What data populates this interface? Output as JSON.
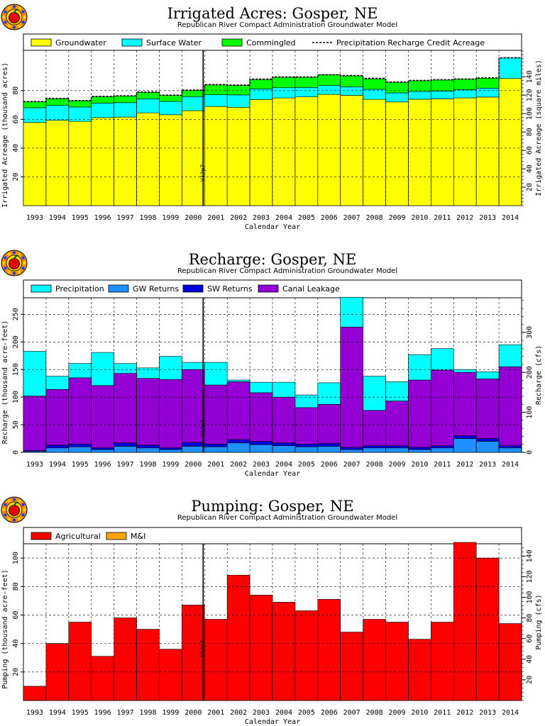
{
  "chart_data": [
    {
      "type": "bar",
      "stacked": true,
      "title": "Irrigated Acres: Gosper, NE",
      "subtitle": "Republican River Compact Administration Groundwater Model",
      "xlabel": "Calendar Year",
      "ylabel": "Irrigated Acreage (thousand acres)",
      "y2label": "Irrigated Acreage (square miles)",
      "categories": [
        "1993",
        "1994",
        "1995",
        "1996",
        "1997",
        "1998",
        "1999",
        "2000",
        "2001",
        "2002",
        "2003",
        "2004",
        "2005",
        "2006",
        "2007",
        "2008",
        "2009",
        "2010",
        "2011",
        "2012",
        "2013",
        "2014"
      ],
      "ylim": [
        0,
        108
      ],
      "yticks": [
        20.0,
        40.0,
        60.0,
        80.0
      ],
      "y2lim": [
        0,
        168.75
      ],
      "y2ticks": [
        20.0,
        40.0,
        60.0,
        80.0,
        100,
        120,
        140
      ],
      "grid": true,
      "legend_position": "top",
      "marker": {
        "label": "V12p7",
        "x": "2000/2001"
      },
      "series": [
        {
          "name": "Groundwater",
          "color": "#ffff00",
          "values": [
            57.8,
            59.3,
            58.6,
            61.2,
            61.6,
            64.5,
            63.2,
            66.0,
            69.0,
            68.4,
            73.8,
            74.9,
            75.6,
            77.4,
            76.7,
            73.9,
            72.1,
            74.0,
            74.2,
            74.9,
            75.5,
            88.4
          ]
        },
        {
          "name": "Surface Water",
          "color": "#00ffff",
          "values": [
            10.3,
            10.4,
            10.0,
            10.1,
            10.0,
            9.8,
            9.3,
            9.8,
            8.1,
            8.6,
            7.4,
            7.1,
            6.6,
            6.1,
            5.9,
            7.0,
            6.3,
            5.3,
            5.5,
            5.7,
            6.2,
            14.2
          ]
        },
        {
          "name": "Commingled",
          "color": "#00ff00",
          "values": [
            4.0,
            4.6,
            4.2,
            4.4,
            4.5,
            4.4,
            4.1,
            4.3,
            6.8,
            6.5,
            6.4,
            7.2,
            7.0,
            7.5,
            7.6,
            7.2,
            7.4,
            7.5,
            7.6,
            7.2,
            6.9,
            0.0
          ]
        }
      ],
      "line_series": {
        "name": "Precipitation Recharge Credit Acreage",
        "values": [
          72.4,
          74.6,
          73.1,
          76.0,
          76.4,
          79.1,
          76.9,
          80.4,
          84.2,
          83.9,
          88.0,
          89.5,
          89.5,
          91.0,
          90.5,
          88.5,
          86.0,
          87.1,
          87.6,
          88.1,
          88.9,
          102.8
        ]
      }
    },
    {
      "type": "bar",
      "stacked": true,
      "title": "Recharge: Gosper, NE",
      "subtitle": "Republican River Compact Administration Groundwater Model",
      "xlabel": "Calendar Year",
      "ylabel": "Recharge (thousand acre-feet)",
      "y2label": "Recharge (cfs)",
      "categories": [
        "1993",
        "1994",
        "1995",
        "1996",
        "1997",
        "1998",
        "1999",
        "2000",
        "2001",
        "2002",
        "2003",
        "2004",
        "2005",
        "2006",
        "2007",
        "2008",
        "2009",
        "2010",
        "2011",
        "2012",
        "2013",
        "2014"
      ],
      "ylim": [
        0,
        280
      ],
      "yticks": [
        0,
        50,
        100,
        150,
        200,
        250
      ],
      "y2lim": [
        0,
        386.7
      ],
      "y2ticks": [
        0,
        100,
        200,
        300
      ],
      "grid": true,
      "legend_position": "top",
      "marker": {
        "label": "V12p7",
        "x": "2000/2001"
      },
      "series": [
        {
          "name": "GW Returns",
          "color": "#1e90ff",
          "values": [
            2,
            8,
            10,
            5,
            11,
            8,
            5,
            11,
            10,
            17,
            14,
            12,
            10,
            11,
            5,
            8,
            8,
            5,
            8,
            25,
            20,
            8
          ]
        },
        {
          "name": "SW Returns",
          "color": "#0000dd",
          "values": [
            1,
            5,
            5,
            3,
            6,
            5,
            3,
            7,
            5,
            6,
            6,
            5,
            5,
            5,
            4,
            4,
            4,
            4,
            4,
            5,
            5,
            4
          ]
        },
        {
          "name": "Canal Leakage",
          "color": "#9400d3",
          "values": [
            99,
            101,
            120,
            113,
            126,
            121,
            124,
            132,
            107,
            105,
            88,
            83,
            66,
            71,
            218,
            64,
            81,
            122,
            137,
            115,
            108,
            143
          ]
        },
        {
          "name": "Precipitation",
          "color": "#00ffff",
          "values": [
            81,
            24,
            26,
            60,
            18,
            19,
            42,
            13,
            41,
            3,
            19,
            27,
            23,
            39,
            54,
            62,
            35,
            46,
            39,
            5,
            13,
            40
          ]
        }
      ]
    },
    {
      "type": "bar",
      "stacked": true,
      "title": "Pumping: Gosper, NE",
      "subtitle": "Republican River Compact Administration Groundwater Model",
      "xlabel": "Calendar Year",
      "ylabel": "Pumping (thousand acre-feet)",
      "y2label": "Pumping (cfs)",
      "categories": [
        "1993",
        "1994",
        "1995",
        "1996",
        "1997",
        "1998",
        "1999",
        "2000",
        "2001",
        "2002",
        "2003",
        "2004",
        "2005",
        "2006",
        "2007",
        "2008",
        "2009",
        "2010",
        "2011",
        "2012",
        "2013",
        "2014"
      ],
      "ylim": [
        0,
        110
      ],
      "yticks": [
        20.0,
        40.0,
        60.0,
        80.0,
        100
      ],
      "y2lim": [
        0,
        151.9
      ],
      "y2ticks": [
        20.0,
        40.0,
        60.0,
        80.0,
        100,
        120,
        140
      ],
      "grid": true,
      "legend_position": "top",
      "marker": {
        "label": "V12p7",
        "x": "2000/2001"
      },
      "series": [
        {
          "name": "Agricultural",
          "color": "#ff0000",
          "values": [
            10,
            40,
            55,
            31,
            58,
            50,
            36,
            67,
            57,
            88,
            74,
            69,
            63,
            71,
            48,
            57,
            55,
            43,
            55,
            111,
            100,
            54
          ]
        },
        {
          "name": "M&I",
          "color": "#ffa500",
          "values": [
            0,
            0,
            0,
            0,
            0,
            0,
            0,
            0,
            0,
            0,
            0,
            0,
            0,
            0,
            0,
            0,
            0,
            0,
            0,
            0,
            0,
            0
          ]
        }
      ]
    }
  ]
}
